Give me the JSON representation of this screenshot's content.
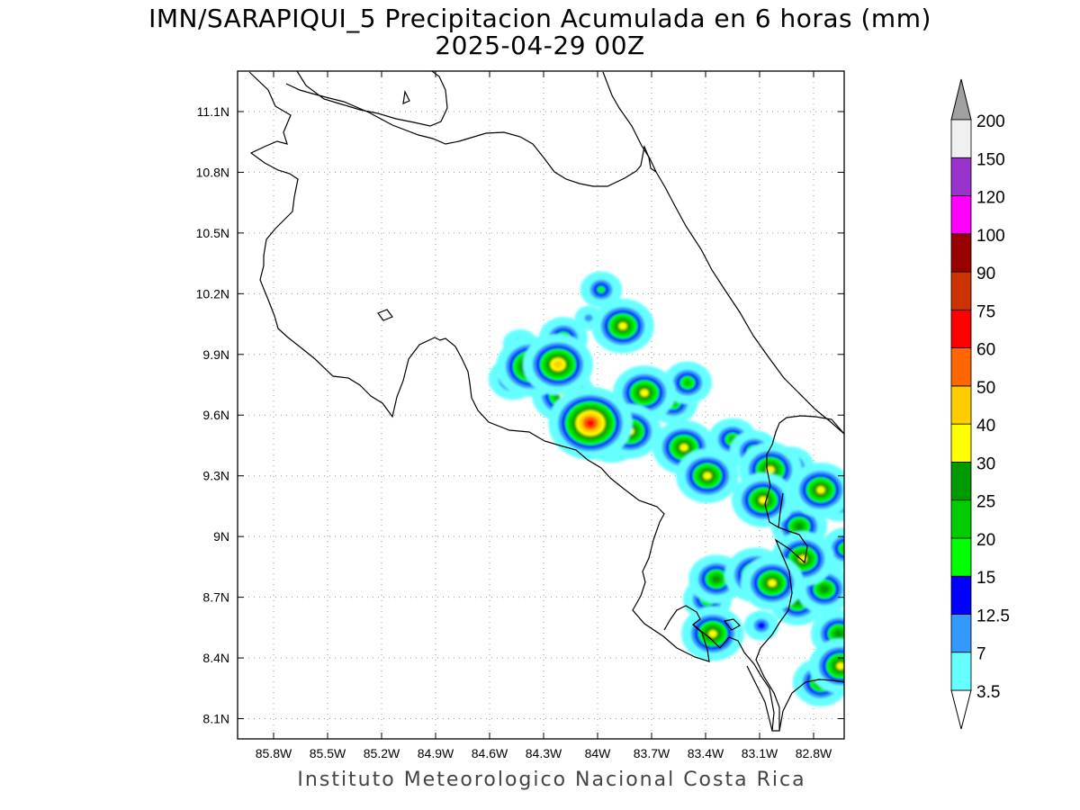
{
  "title": {
    "line1": "IMN/SARAPIQUI_5 Precipitacion Acumulada en 6 horas (mm)",
    "line2": "2025-04-29 00Z"
  },
  "credit": "Instituto Meteorologico Nacional Costa Rica",
  "map": {
    "lon_range": [
      -86.0,
      -82.63
    ],
    "lat_range": [
      8.0,
      11.3
    ],
    "lon_ticks": [
      "85.8W",
      "85.5W",
      "85.2W",
      "84.9W",
      "84.6W",
      "84.3W",
      "84W",
      "83.7W",
      "83.4W",
      "83.1W",
      "82.8W"
    ],
    "lon_values": [
      -85.8,
      -85.5,
      -85.2,
      -84.9,
      -84.6,
      -84.3,
      -84.0,
      -83.7,
      -83.4,
      -83.1,
      -82.8
    ],
    "lat_ticks": [
      "11.1N",
      "10.8N",
      "10.5N",
      "10.2N",
      "9.9N",
      "9.6N",
      "9.3N",
      "9N",
      "8.7N",
      "8.4N",
      "8.1N"
    ],
    "lat_values": [
      11.1,
      10.8,
      10.5,
      10.2,
      9.9,
      9.6,
      9.3,
      9.0,
      8.7,
      8.4,
      8.1
    ],
    "grid": "dotted"
  },
  "colorbar": {
    "labels": [
      "3.5",
      "7",
      "12.5",
      "15",
      "20",
      "25",
      "30",
      "40",
      "50",
      "60",
      "75",
      "90",
      "100",
      "120",
      "150",
      "200"
    ],
    "colors": [
      "#66ffff",
      "#3399ff",
      "#0000ff",
      "#00ff00",
      "#00cc00",
      "#009900",
      "#ffff00",
      "#ffcc00",
      "#ff6600",
      "#ff0000",
      "#cc3300",
      "#990000",
      "#ff00ff",
      "#9933cc",
      "#f0f0f0",
      "#a0a0a0"
    ]
  },
  "chart_data": {
    "type": "heatmap",
    "title": "IMN/SARAPIQUI_5 Precipitacion Acumulada en 6 horas (mm)",
    "subtitle": "2025-04-29 00Z",
    "xlabel": "",
    "ylabel": "",
    "units": "mm",
    "levels": [
      3.5,
      7,
      12.5,
      15,
      20,
      25,
      30,
      40,
      50,
      60,
      75,
      90,
      100,
      120,
      150,
      200
    ],
    "xlim": [
      -86.0,
      -82.63
    ],
    "ylim": [
      8.0,
      11.3
    ],
    "grid": true,
    "legend": "right",
    "cells": [
      {
        "lon": -84.37,
        "lat": 9.84,
        "level": 40
      },
      {
        "lon": -84.22,
        "lat": 9.85,
        "level": 40
      },
      {
        "lon": -84.04,
        "lat": 9.56,
        "level": 60
      },
      {
        "lon": -83.86,
        "lat": 10.04,
        "level": 30
      },
      {
        "lon": -83.74,
        "lat": 9.71,
        "level": 30
      },
      {
        "lon": -83.98,
        "lat": 10.22,
        "level": 15
      },
      {
        "lon": -84.19,
        "lat": 9.7,
        "level": 30
      },
      {
        "lon": -83.92,
        "lat": 9.5,
        "level": 30
      },
      {
        "lon": -83.82,
        "lat": 9.52,
        "level": 30
      },
      {
        "lon": -83.52,
        "lat": 9.44,
        "level": 30
      },
      {
        "lon": -83.39,
        "lat": 9.3,
        "level": 30
      },
      {
        "lon": -83.25,
        "lat": 9.48,
        "level": 20
      },
      {
        "lon": -83.13,
        "lat": 9.42,
        "level": 20
      },
      {
        "lon": -83.04,
        "lat": 9.33,
        "level": 30
      },
      {
        "lon": -82.93,
        "lat": 9.34,
        "level": 20
      },
      {
        "lon": -83.08,
        "lat": 9.18,
        "level": 30
      },
      {
        "lon": -82.88,
        "lat": 9.05,
        "level": 25
      },
      {
        "lon": -82.86,
        "lat": 8.89,
        "level": 30
      },
      {
        "lon": -82.76,
        "lat": 9.23,
        "level": 30
      },
      {
        "lon": -82.66,
        "lat": 9.18,
        "level": 20
      },
      {
        "lon": -82.62,
        "lat": 8.94,
        "level": 20
      },
      {
        "lon": -83.12,
        "lat": 8.81,
        "level": 30
      },
      {
        "lon": -83.03,
        "lat": 8.77,
        "level": 30
      },
      {
        "lon": -83.34,
        "lat": 8.79,
        "level": 25
      },
      {
        "lon": -83.39,
        "lat": 8.69,
        "level": 20
      },
      {
        "lon": -82.89,
        "lat": 8.68,
        "level": 25
      },
      {
        "lon": -82.74,
        "lat": 8.74,
        "level": 25
      },
      {
        "lon": -83.36,
        "lat": 8.52,
        "level": 30
      },
      {
        "lon": -83.09,
        "lat": 8.56,
        "level": 12.5
      },
      {
        "lon": -82.66,
        "lat": 8.52,
        "level": 25
      },
      {
        "lon": -82.65,
        "lat": 8.36,
        "level": 30
      },
      {
        "lon": -82.76,
        "lat": 8.28,
        "level": 25
      },
      {
        "lon": -83.58,
        "lat": 9.66,
        "level": 20
      },
      {
        "lon": -83.5,
        "lat": 9.76,
        "level": 20
      },
      {
        "lon": -84.43,
        "lat": 9.95,
        "level": 12.5
      },
      {
        "lon": -84.19,
        "lat": 9.98,
        "level": 20
      },
      {
        "lon": -84.47,
        "lat": 9.78,
        "level": 20
      },
      {
        "lon": -84.05,
        "lat": 10.08,
        "level": 7
      }
    ]
  }
}
